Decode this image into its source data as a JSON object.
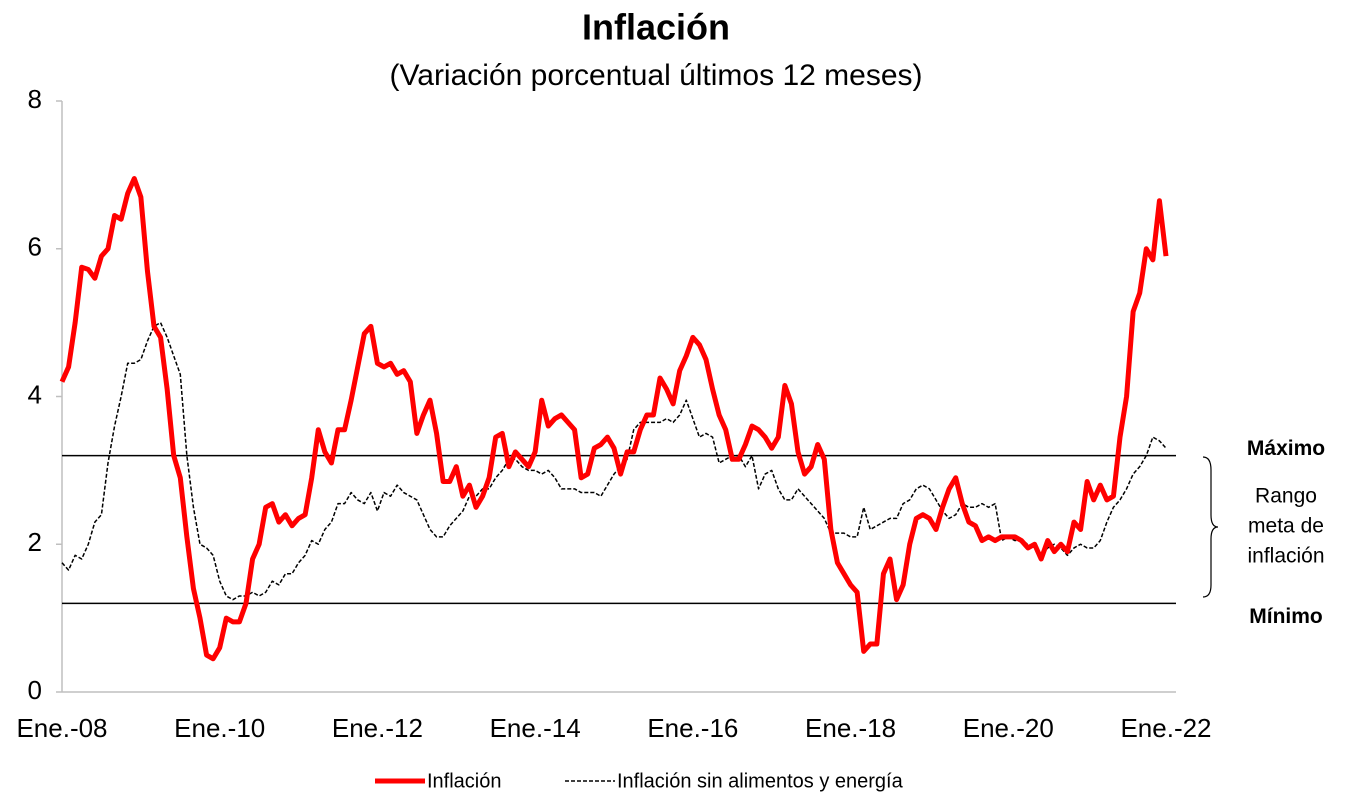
{
  "chart_data": {
    "type": "line",
    "title": "Inflación",
    "subtitle": "(Variación porcentual últimos 12 meses)",
    "categories": [
      "Ene.-08",
      null,
      null,
      null,
      null,
      null,
      null,
      null,
      null,
      null,
      null,
      null,
      null,
      null,
      null,
      null,
      null,
      null,
      null,
      null,
      null,
      null,
      null,
      null,
      "Ene.-10",
      null,
      null,
      null,
      null,
      null,
      null,
      null,
      null,
      null,
      null,
      null,
      null,
      null,
      null,
      null,
      null,
      null,
      null,
      null,
      null,
      null,
      null,
      null,
      "Ene.-12",
      null,
      null,
      null,
      null,
      null,
      null,
      null,
      null,
      null,
      null,
      null,
      null,
      null,
      null,
      null,
      null,
      null,
      null,
      null,
      null,
      null,
      null,
      null,
      "Ene.-14",
      null,
      null,
      null,
      null,
      null,
      null,
      null,
      null,
      null,
      null,
      null,
      null,
      null,
      null,
      null,
      null,
      null,
      null,
      null,
      null,
      null,
      null,
      null,
      "Ene.-16",
      null,
      null,
      null,
      null,
      null,
      null,
      null,
      null,
      null,
      null,
      null,
      null,
      null,
      null,
      null,
      null,
      null,
      null,
      null,
      null,
      null,
      null,
      null,
      "Ene.-18",
      null,
      null,
      null,
      null,
      null,
      null,
      null,
      null,
      null,
      null,
      null,
      null,
      null,
      null,
      null,
      null,
      null,
      null,
      null,
      null,
      null,
      null,
      null,
      "Ene.-20",
      null,
      null,
      null,
      null,
      null,
      null,
      null,
      null,
      null,
      null,
      null,
      null,
      null,
      null,
      null,
      null,
      null,
      null,
      null,
      null,
      null,
      null,
      null,
      "Ene.-22"
    ],
    "series": [
      {
        "name": "Inflación",
        "color": "#ff0000",
        "dash": false,
        "values": [
          4.2,
          4.4,
          5.0,
          5.75,
          5.72,
          5.6,
          5.9,
          6.0,
          6.45,
          6.4,
          6.75,
          6.95,
          6.7,
          5.7,
          4.95,
          4.8,
          4.1,
          3.2,
          2.9,
          2.1,
          1.4,
          1.0,
          0.5,
          0.45,
          0.6,
          1.0,
          0.95,
          0.95,
          1.2,
          1.8,
          2.0,
          2.5,
          2.55,
          2.3,
          2.4,
          2.25,
          2.35,
          2.4,
          2.9,
          3.55,
          3.25,
          3.1,
          3.55,
          3.55,
          3.95,
          4.4,
          4.85,
          4.95,
          4.45,
          4.4,
          4.45,
          4.3,
          4.35,
          4.2,
          3.5,
          3.75,
          3.95,
          3.5,
          2.85,
          2.85,
          3.05,
          2.65,
          2.8,
          2.5,
          2.65,
          2.9,
          3.45,
          3.5,
          3.05,
          3.25,
          3.15,
          3.05,
          3.25,
          3.95,
          3.6,
          3.7,
          3.75,
          3.65,
          3.55,
          2.9,
          2.95,
          3.3,
          3.35,
          3.45,
          3.3,
          2.95,
          3.25,
          3.25,
          3.55,
          3.75,
          3.75,
          4.25,
          4.1,
          3.9,
          4.35,
          4.55,
          4.8,
          4.7,
          4.5,
          4.1,
          3.75,
          3.55,
          3.15,
          3.15,
          3.35,
          3.6,
          3.55,
          3.45,
          3.3,
          3.45,
          4.15,
          3.9,
          3.25,
          2.95,
          3.05,
          3.35,
          3.15,
          2.2,
          1.75,
          1.6,
          1.45,
          1.35,
          0.55,
          0.65,
          0.65,
          1.6,
          1.8,
          1.25,
          1.45,
          2.0,
          2.35,
          2.4,
          2.35,
          2.2,
          2.5,
          2.75,
          2.9,
          2.55,
          2.3,
          2.25,
          2.05,
          2.1,
          2.05,
          2.1,
          2.1,
          2.1,
          2.05,
          1.95,
          2.0,
          1.8,
          2.05,
          1.9,
          2.0,
          1.9,
          2.3,
          2.2,
          2.85,
          2.6,
          2.8,
          2.6,
          2.65,
          3.45,
          4.0,
          5.15,
          5.4,
          6.0,
          5.85,
          6.65,
          5.9
        ]
      },
      {
        "name": "Inflación sin alimentos y energía",
        "color": "#000000",
        "dash": true,
        "values": [
          1.75,
          1.65,
          1.85,
          1.8,
          2.0,
          2.3,
          2.4,
          3.1,
          3.6,
          4.0,
          4.45,
          4.45,
          4.5,
          4.75,
          4.95,
          5.0,
          4.8,
          4.55,
          4.3,
          3.2,
          2.5,
          2.0,
          1.95,
          1.85,
          1.5,
          1.3,
          1.25,
          1.3,
          1.3,
          1.35,
          1.3,
          1.35,
          1.5,
          1.45,
          1.6,
          1.6,
          1.75,
          1.85,
          2.05,
          2.0,
          2.2,
          2.3,
          2.55,
          2.55,
          2.7,
          2.6,
          2.55,
          2.7,
          2.45,
          2.7,
          2.65,
          2.8,
          2.7,
          2.65,
          2.6,
          2.4,
          2.2,
          2.1,
          2.1,
          2.25,
          2.35,
          2.45,
          2.65,
          2.65,
          2.75,
          2.75,
          2.9,
          3.0,
          3.15,
          3.15,
          3.05,
          3.0,
          3.0,
          2.95,
          3.0,
          2.9,
          2.75,
          2.75,
          2.75,
          2.7,
          2.7,
          2.7,
          2.65,
          2.8,
          2.95,
          3.05,
          3.15,
          3.55,
          3.65,
          3.65,
          3.65,
          3.65,
          3.7,
          3.65,
          3.75,
          3.95,
          3.7,
          3.45,
          3.5,
          3.45,
          3.1,
          3.15,
          3.2,
          3.2,
          3.05,
          3.2,
          2.75,
          2.95,
          3.0,
          2.75,
          2.6,
          2.6,
          2.75,
          2.65,
          2.55,
          2.45,
          2.35,
          2.15,
          2.15,
          2.15,
          2.1,
          2.1,
          2.5,
          2.2,
          2.25,
          2.3,
          2.35,
          2.35,
          2.55,
          2.6,
          2.75,
          2.8,
          2.75,
          2.6,
          2.45,
          2.35,
          2.4,
          2.55,
          2.5,
          2.5,
          2.55,
          2.5,
          2.55,
          2.05,
          2.1,
          2.05,
          2.05,
          2.0,
          1.95,
          1.85,
          1.95,
          2.0,
          1.95,
          1.85,
          1.95,
          2.0,
          1.95,
          1.95,
          2.05,
          2.3,
          2.5,
          2.6,
          2.75,
          2.95,
          3.05,
          3.2,
          3.45,
          3.4,
          3.3
        ]
      }
    ],
    "ylim": [
      0,
      8
    ],
    "yticks": [
      0,
      2,
      4,
      6,
      8
    ],
    "grid": false,
    "legend": "bottom",
    "reference_lines": [
      {
        "label": "Máximo",
        "value": 3.2
      },
      {
        "label": "Mínimo",
        "value": 1.2
      }
    ],
    "range_label": [
      "Rango",
      "meta de",
      "inflación"
    ]
  }
}
